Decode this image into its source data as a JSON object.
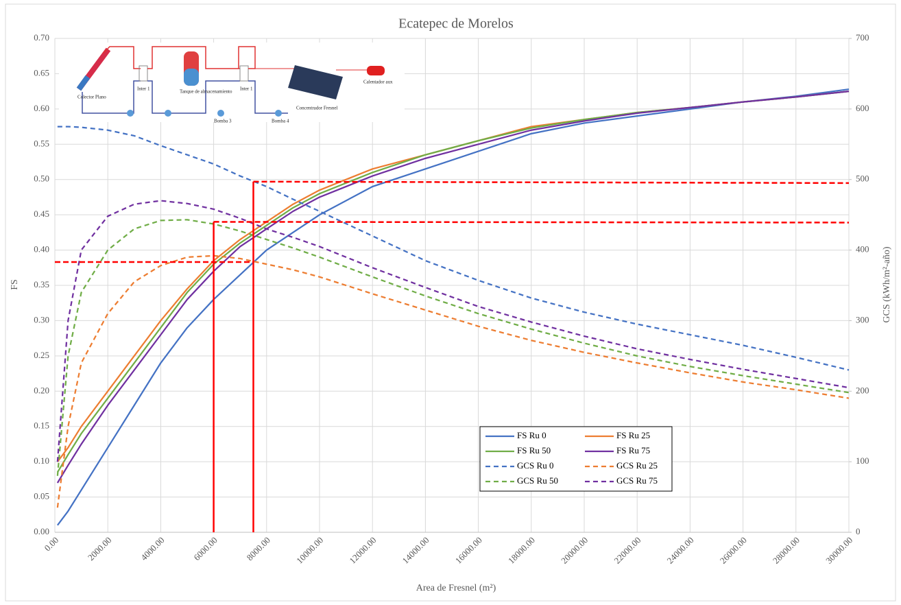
{
  "chart_data": {
    "type": "line",
    "title": "Ecatepec de Morelos",
    "x_label": "Area de Fresnel (m²)",
    "y_label": "FS",
    "y2_label": "GCS (kWh/m²-año)",
    "x": [
      100,
      500,
      1000,
      2000,
      3000,
      4000,
      5000,
      6000,
      7000,
      8000,
      9000,
      10000,
      12000,
      14000,
      16000,
      18000,
      20000,
      22000,
      24000,
      26000,
      28000,
      30000
    ],
    "xlim": [
      0,
      30000
    ],
    "xticks": [
      {
        "value": 0,
        "label": "0.00"
      },
      {
        "value": 2000,
        "label": "2000.00"
      },
      {
        "value": 4000,
        "label": "4000.00"
      },
      {
        "value": 6000,
        "label": "6000.00"
      },
      {
        "value": 8000,
        "label": "8000.00"
      },
      {
        "value": 10000,
        "label": "10000.00"
      },
      {
        "value": 12000,
        "label": "12000.00"
      },
      {
        "value": 14000,
        "label": "14000.00"
      },
      {
        "value": 16000,
        "label": "16000.00"
      },
      {
        "value": 18000,
        "label": "18000.00"
      },
      {
        "value": 20000,
        "label": "20000.00"
      },
      {
        "value": 22000,
        "label": "22000.00"
      },
      {
        "value": 24000,
        "label": "24000.00"
      },
      {
        "value": 26000,
        "label": "26000.00"
      },
      {
        "value": 28000,
        "label": "28000.00"
      },
      {
        "value": 30000,
        "label": "30000.00"
      }
    ],
    "ylim": [
      0,
      0.7
    ],
    "yticks": [
      {
        "value": 0,
        "label": "0.00"
      },
      {
        "value": 0.05,
        "label": "0.05"
      },
      {
        "value": 0.1,
        "label": "0.10"
      },
      {
        "value": 0.15,
        "label": "0.15"
      },
      {
        "value": 0.2,
        "label": "0.20"
      },
      {
        "value": 0.25,
        "label": "0.25"
      },
      {
        "value": 0.3,
        "label": "0.30"
      },
      {
        "value": 0.35,
        "label": "0.35"
      },
      {
        "value": 0.4,
        "label": "0.40"
      },
      {
        "value": 0.45,
        "label": "0.45"
      },
      {
        "value": 0.5,
        "label": "0.50"
      },
      {
        "value": 0.55,
        "label": "0.55"
      },
      {
        "value": 0.6,
        "label": "0.60"
      },
      {
        "value": 0.65,
        "label": "0.65"
      },
      {
        "value": 0.7,
        "label": "0.70"
      }
    ],
    "y2lim": [
      0,
      700
    ],
    "y2ticks": [
      0,
      100,
      200,
      300,
      400,
      500,
      600,
      700
    ],
    "grid": true,
    "series": [
      {
        "name": "FS Ru 0",
        "color": "#4472c4",
        "dash": false,
        "values": [
          0.01,
          0.03,
          0.06,
          0.12,
          0.18,
          0.24,
          0.29,
          0.33,
          0.365,
          0.4,
          0.425,
          0.45,
          0.49,
          0.515,
          0.54,
          0.565,
          0.58,
          0.59,
          0.6,
          0.61,
          0.618,
          0.628
        ]
      },
      {
        "name": "FS Ru 25",
        "color": "#ed7d31",
        "dash": false,
        "values": [
          0.1,
          0.12,
          0.15,
          0.2,
          0.25,
          0.3,
          0.345,
          0.385,
          0.415,
          0.44,
          0.465,
          0.485,
          0.515,
          0.535,
          0.555,
          0.575,
          0.585,
          0.595,
          0.602,
          0.61,
          0.617,
          0.625
        ]
      },
      {
        "name": "FS Ru 50",
        "color": "#70ad47",
        "dash": false,
        "values": [
          0.085,
          0.11,
          0.14,
          0.19,
          0.24,
          0.29,
          0.34,
          0.38,
          0.41,
          0.435,
          0.46,
          0.48,
          0.51,
          0.535,
          0.555,
          0.573,
          0.585,
          0.595,
          0.602,
          0.61,
          0.617,
          0.625
        ]
      },
      {
        "name": "FS Ru 75",
        "color": "#7030a0",
        "dash": false,
        "values": [
          0.07,
          0.095,
          0.125,
          0.18,
          0.23,
          0.28,
          0.33,
          0.37,
          0.405,
          0.43,
          0.455,
          0.475,
          0.505,
          0.53,
          0.55,
          0.57,
          0.583,
          0.594,
          0.602,
          0.61,
          0.617,
          0.625
        ]
      },
      {
        "name": "GCS Ru 0",
        "color": "#4472c4",
        "dash": true,
        "axis": "y2",
        "values": [
          575,
          575,
          574,
          570,
          562,
          548,
          535,
          522,
          505,
          490,
          472,
          455,
          420,
          385,
          357,
          332,
          312,
          295,
          280,
          265,
          248,
          230
        ]
      },
      {
        "name": "GCS Ru 25",
        "color": "#ed7d31",
        "dash": true,
        "axis": "y2",
        "values": [
          35,
          150,
          240,
          310,
          355,
          378,
          390,
          392,
          388,
          380,
          372,
          362,
          338,
          315,
          292,
          272,
          255,
          240,
          226,
          213,
          202,
          190
        ]
      },
      {
        "name": "GCS Ru 50",
        "color": "#70ad47",
        "dash": true,
        "axis": "y2",
        "values": [
          80,
          250,
          340,
          400,
          430,
          442,
          443,
          437,
          427,
          415,
          403,
          390,
          362,
          335,
          310,
          288,
          268,
          250,
          235,
          222,
          210,
          198
        ]
      },
      {
        "name": "GCS Ru 75",
        "color": "#7030a0",
        "dash": true,
        "axis": "y2",
        "values": [
          100,
          300,
          400,
          448,
          465,
          470,
          466,
          458,
          445,
          430,
          418,
          405,
          375,
          347,
          320,
          298,
          278,
          260,
          245,
          231,
          218,
          205
        ]
      }
    ],
    "reference_lines": [
      {
        "color": "#ff0000",
        "dash": true,
        "x": [
          0,
          7500
        ],
        "y": [
          0.383,
          0.383
        ]
      },
      {
        "color": "#ff0000",
        "dash": true,
        "x": [
          6000,
          30000
        ],
        "y": [
          0.44,
          0.439
        ]
      },
      {
        "color": "#ff0000",
        "dash": true,
        "x": [
          7500,
          30000
        ],
        "y": [
          0.497,
          0.495
        ]
      },
      {
        "color": "#ff0000",
        "dash": false,
        "x": [
          6000,
          6000
        ],
        "y": [
          0,
          0.44
        ]
      },
      {
        "color": "#ff0000",
        "dash": false,
        "x": [
          7500,
          7500
        ],
        "y": [
          0,
          0.497
        ]
      }
    ],
    "inset_labels": [
      "Colector Plano",
      "Inter 1",
      "Tanque de almacenamiento",
      "Bomba 3",
      "Inter 1",
      "Bomba 4",
      "Concentrador Fresnel",
      "Calentador aux"
    ]
  }
}
